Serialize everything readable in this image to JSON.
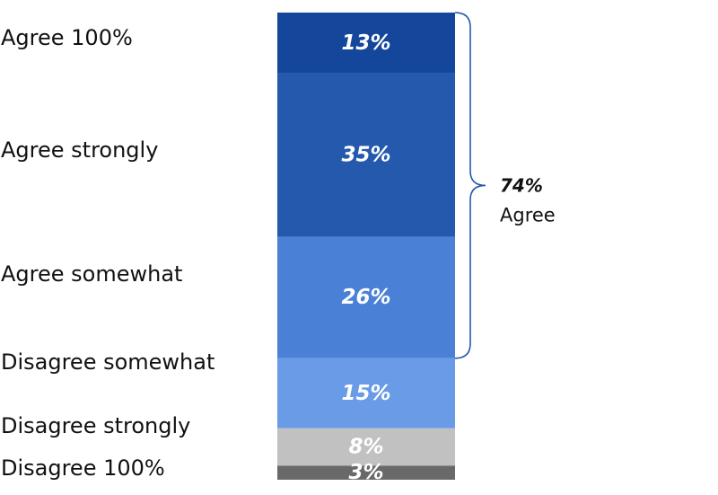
{
  "chart_data": {
    "type": "bar",
    "subtype": "stacked-100",
    "categories": [
      "Agree 100%",
      "Agree strongly",
      "Agree somewhat",
      "Disagree somewhat",
      "Disagree strongly",
      "Disagree 100%"
    ],
    "values": [
      13,
      35,
      26,
      15,
      8,
      3
    ],
    "value_labels": [
      "13%",
      "35%",
      "26%",
      "15%",
      "8%",
      "3%"
    ],
    "colors": [
      "#14479c",
      "#2459ad",
      "#4a80d6",
      "#6a9be6",
      "#c1c1c1",
      "#696969"
    ],
    "title": "",
    "xlabel": "",
    "ylabel": "",
    "grid": false,
    "annotation": {
      "value": "74%",
      "label": "Agree",
      "spans": [
        "Agree 100%",
        "Agree strongly",
        "Agree somewhat"
      ]
    }
  }
}
